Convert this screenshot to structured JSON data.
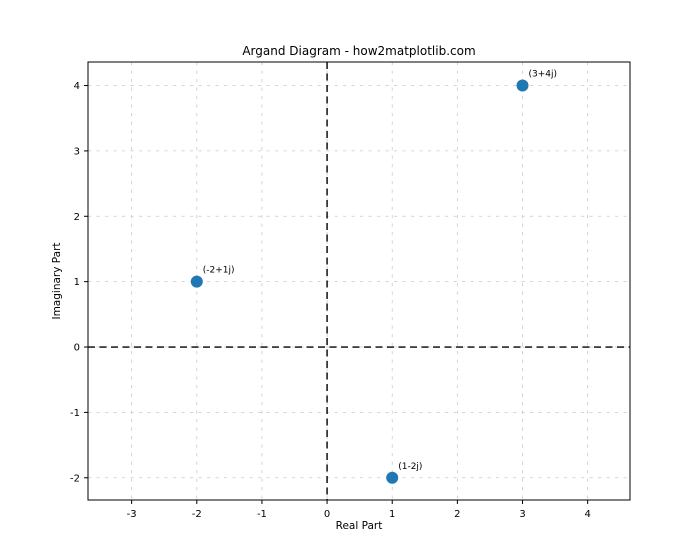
{
  "chart_data": {
    "type": "scatter",
    "title": "Argand Diagram - how2matplotlib.com",
    "xlabel": "Real Part",
    "ylabel": "Imaginary Part",
    "points": [
      {
        "x": 3,
        "y": 4,
        "label": "(3+4j)"
      },
      {
        "x": -2,
        "y": 1,
        "label": "(-2+1j)"
      },
      {
        "x": 1,
        "y": -2,
        "label": "(1-2j)"
      }
    ],
    "xticks": [
      -3,
      -2,
      -1,
      0,
      1,
      2,
      3,
      4
    ],
    "yticks": [
      -2,
      -1,
      0,
      1,
      2,
      3,
      4
    ],
    "xlim": [
      -3.67,
      4.65
    ],
    "ylim": [
      -2.34,
      4.36
    ],
    "grid": true,
    "grid_style": "dashed",
    "zero_lines": {
      "x": 0,
      "y": 0,
      "style": "dashed",
      "color": "#000000"
    },
    "legend": "none",
    "colors": {
      "marker": "#1f77b4",
      "grid": "#c9c9c9",
      "axis": "#000000",
      "text": "#000000",
      "background": "#ffffff"
    }
  }
}
